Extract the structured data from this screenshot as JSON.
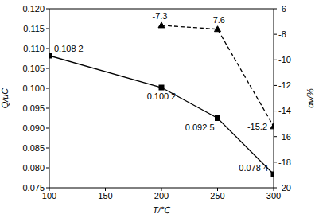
{
  "chart_data": {
    "type": "line",
    "x_label": "T/℃",
    "y_label": "Q/μC",
    "y2_label": "αv/%",
    "x": [
      100,
      200,
      250,
      300
    ],
    "xlim": [
      100,
      300
    ],
    "xticks": [
      100,
      150,
      200,
      250,
      300
    ],
    "ylim": [
      0.075,
      0.12
    ],
    "yticks": [
      0.075,
      {
        "value": 0.08,
        "label": "0.080"
      },
      0.085,
      {
        "value": 0.09,
        "label": "0.090"
      },
      0.095,
      {
        "value": 0.1,
        "label": "0.100"
      },
      0.105,
      {
        "value": 0.11,
        "label": "0.110"
      },
      0.115,
      {
        "value": 0.12,
        "label": "0.120"
      }
    ],
    "y2lim": [
      -20,
      -6
    ],
    "y2ticks": [
      -20,
      -18,
      -16,
      -14,
      -12,
      -10,
      -8,
      -6
    ],
    "data_labels": true,
    "series": [
      {
        "color": "#000000",
        "marker": "square",
        "line_style": "solid",
        "values": [
          0.1082,
          0.1002,
          0.0925,
          0.0784
        ],
        "value_labels": [
          "0.108 2",
          "0.100 2",
          "0.092 5",
          "0.078 4"
        ]
      },
      {
        "color": "#000000",
        "marker": "triangle",
        "line_style": "dashed",
        "axis": "y2",
        "values": [
          null,
          -7.3,
          -7.6,
          -15.2
        ]
      }
    ]
  }
}
